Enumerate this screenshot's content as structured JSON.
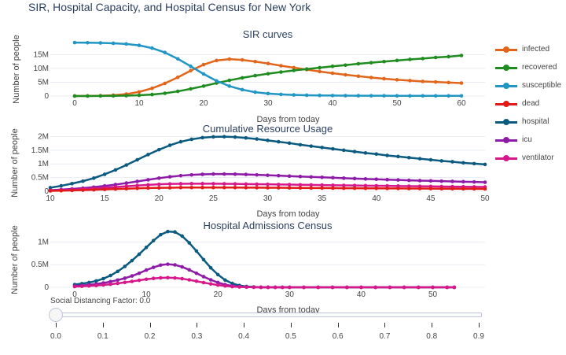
{
  "page": {
    "title": "SIR, Hospital Capacity, and Hospital Census for New York"
  },
  "legend": [
    {
      "name": "infected",
      "color": "#e1661b"
    },
    {
      "name": "recovered",
      "color": "#1f8c1f"
    },
    {
      "name": "susceptible",
      "color": "#2196c4"
    },
    {
      "name": "dead",
      "color": "#e11a1a"
    },
    {
      "name": "hospital",
      "color": "#0b5a80"
    },
    {
      "name": "icu",
      "color": "#8e1aa8"
    },
    {
      "name": "ventilator",
      "color": "#d6188a"
    }
  ],
  "slider": {
    "label": "Social Distancing Factor: 0.0",
    "value": 0.0,
    "ticks": [
      "0.0",
      "0.1",
      "0.2",
      "0.3",
      "0.4",
      "0.5",
      "0.6",
      "0.7",
      "0.8",
      "0.9"
    ]
  },
  "chart_data": [
    {
      "type": "line",
      "title": "SIR curves",
      "xlabel": "Days from today",
      "ylabel": "Number of people",
      "xlim": [
        0,
        60
      ],
      "ylim": [
        0,
        20000000
      ],
      "xticks": [
        "0",
        "10",
        "20",
        "30",
        "40",
        "50",
        "60"
      ],
      "yticks": [
        "0",
        "5M",
        "10M",
        "15M"
      ],
      "x": [
        0,
        2,
        4,
        6,
        8,
        10,
        12,
        14,
        16,
        18,
        20,
        22,
        24,
        26,
        28,
        30,
        32,
        34,
        36,
        38,
        40,
        42,
        44,
        46,
        48,
        50,
        52,
        54,
        56,
        58,
        60
      ],
      "series": [
        {
          "name": "infected",
          "values": [
            20000,
            50000,
            120000,
            300000,
            700000,
            1500000,
            2800000,
            4600000,
            6800000,
            9200000,
            11400000,
            12900000,
            13400000,
            13100000,
            12500000,
            11800000,
            11000000,
            10300000,
            9600000,
            8900000,
            8300000,
            7700000,
            7200000,
            6700000,
            6300000,
            5900000,
            5600000,
            5300000,
            5100000,
            4900000,
            4700000
          ]
        },
        {
          "name": "recovered",
          "values": [
            0,
            10000,
            30000,
            60000,
            130000,
            280000,
            550000,
            1000000,
            1700000,
            2600000,
            3600000,
            4700000,
            5700000,
            6600000,
            7400000,
            8100000,
            8700000,
            9300000,
            9800000,
            10300000,
            10800000,
            11200000,
            11700000,
            12100000,
            12500000,
            12900000,
            13300000,
            13600000,
            14000000,
            14300000,
            14700000
          ]
        },
        {
          "name": "susceptible",
          "values": [
            19400000,
            19350000,
            19280000,
            19150000,
            18900000,
            18400000,
            17400000,
            15800000,
            13500000,
            10800000,
            8000000,
            5500000,
            3600000,
            2300000,
            1400000,
            900000,
            600000,
            400000,
            300000,
            220000,
            170000,
            140000,
            120000,
            100000,
            90000,
            80000,
            75000,
            70000,
            65000,
            62000,
            60000
          ]
        }
      ]
    },
    {
      "type": "line",
      "title": "Cumulative Resource Usage",
      "xlabel": "Days from today",
      "ylabel": "Number of people",
      "xlim": [
        10,
        50
      ],
      "ylim": [
        0,
        2100000
      ],
      "xticks": [
        "10",
        "15",
        "20",
        "25",
        "30",
        "35",
        "40",
        "45",
        "50"
      ],
      "yticks": [
        "0",
        "0.5M",
        "1M",
        "1.5M",
        "2M"
      ],
      "x": [
        10,
        11,
        12,
        13,
        14,
        15,
        16,
        17,
        18,
        19,
        20,
        21,
        22,
        23,
        24,
        25,
        26,
        27,
        28,
        29,
        30,
        31,
        32,
        33,
        34,
        35,
        36,
        37,
        38,
        39,
        40,
        41,
        42,
        43,
        44,
        45,
        46,
        47,
        48,
        49,
        50
      ],
      "series": [
        {
          "name": "hospital",
          "values": [
            130000,
            200000,
            280000,
            370000,
            480000,
            620000,
            780000,
            960000,
            1150000,
            1340000,
            1520000,
            1680000,
            1810000,
            1900000,
            1960000,
            1990000,
            1995000,
            1980000,
            1950000,
            1910000,
            1860000,
            1810000,
            1760000,
            1700000,
            1650000,
            1600000,
            1550000,
            1500000,
            1450000,
            1400000,
            1360000,
            1310000,
            1270000,
            1230000,
            1190000,
            1150000,
            1110000,
            1080000,
            1040000,
            1010000,
            980000
          ]
        },
        {
          "name": "icu",
          "values": [
            40000,
            60000,
            85000,
            115000,
            150000,
            195000,
            245000,
            300000,
            360000,
            420000,
            480000,
            530000,
            570000,
            600000,
            620000,
            630000,
            630000,
            625000,
            615000,
            600000,
            585000,
            570000,
            555000,
            540000,
            525000,
            510000,
            495000,
            480000,
            465000,
            450000,
            440000,
            425000,
            415000,
            400000,
            390000,
            380000,
            370000,
            360000,
            350000,
            340000,
            330000
          ]
        },
        {
          "name": "ventilator",
          "values": [
            25000,
            38000,
            55000,
            75000,
            100000,
            125000,
            155000,
            185000,
            210000,
            235000,
            255000,
            268000,
            275000,
            278000,
            278000,
            276000,
            273000,
            269000,
            264000,
            259000,
            254000,
            248000,
            243000,
            237000,
            232000,
            227000,
            221000,
            216000,
            211000,
            206000,
            201000,
            196000,
            191000,
            187000,
            182000,
            178000,
            174000,
            170000,
            166000,
            162000,
            158000
          ]
        },
        {
          "name": "dead",
          "values": [
            15000,
            22000,
            31000,
            42000,
            55000,
            68000,
            82000,
            95000,
            107000,
            117000,
            125000,
            131000,
            135000,
            137000,
            138000,
            138000,
            137000,
            136000,
            134000,
            132000,
            130000,
            128000,
            125000,
            123000,
            120000,
            118000,
            116000,
            113000,
            111000,
            109000,
            107000,
            105000,
            103000,
            101000,
            99000,
            97000,
            95000,
            93000,
            91000,
            89000,
            87000
          ]
        }
      ]
    },
    {
      "type": "line",
      "title": "Hospital Admissions Census",
      "xlabel": "Days from today",
      "ylabel": "Number of people",
      "xlim": [
        0,
        54
      ],
      "ylim": [
        0,
        1250000
      ],
      "xticks": [
        "0",
        "10",
        "20",
        "30",
        "40",
        "50"
      ],
      "yticks": [
        "0",
        "0.5M",
        "1M"
      ],
      "x": [
        0,
        1,
        2,
        3,
        4,
        5,
        6,
        7,
        8,
        9,
        10,
        11,
        12,
        13,
        14,
        15,
        16,
        17,
        18,
        19,
        20,
        21,
        22,
        23,
        24,
        25,
        26,
        27,
        28,
        29,
        30,
        32,
        34,
        36,
        38,
        40,
        42,
        44,
        46,
        48,
        50,
        52,
        53
      ],
      "series": [
        {
          "name": "hospital",
          "values": [
            60000,
            80000,
            105000,
            140000,
            190000,
            260000,
            350000,
            460000,
            590000,
            730000,
            880000,
            1030000,
            1160000,
            1230000,
            1220000,
            1130000,
            980000,
            800000,
            610000,
            430000,
            280000,
            160000,
            85000,
            40000,
            18000,
            8000,
            3000,
            1000,
            500,
            200,
            100,
            0,
            0,
            0,
            0,
            0,
            0,
            0,
            0,
            0,
            0,
            0,
            0
          ]
        },
        {
          "name": "icu",
          "values": [
            30000,
            40000,
            55000,
            72000,
            95000,
            125000,
            160000,
            200000,
            250000,
            310000,
            380000,
            440000,
            490000,
            510000,
            495000,
            450000,
            385000,
            310000,
            235000,
            165000,
            105000,
            60000,
            30000,
            14000,
            6000,
            2000,
            800,
            300,
            100,
            0,
            0,
            0,
            0,
            0,
            0,
            0,
            0,
            0,
            0,
            0,
            0,
            0,
            0
          ]
        },
        {
          "name": "ventilator",
          "values": [
            15000,
            22000,
            30000,
            40000,
            52000,
            68000,
            87000,
            108000,
            130000,
            155000,
            178000,
            196000,
            208000,
            212000,
            206000,
            190000,
            165000,
            135000,
            104000,
            75000,
            50000,
            30000,
            16000,
            8000,
            3500,
            1500,
            600,
            200,
            0,
            0,
            0,
            0,
            0,
            0,
            0,
            0,
            0,
            0,
            0,
            0,
            0,
            0,
            0
          ]
        }
      ]
    }
  ]
}
